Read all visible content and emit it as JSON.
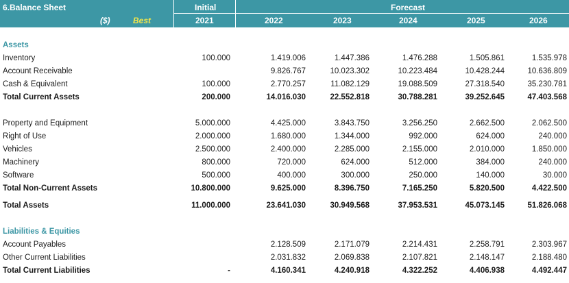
{
  "header": {
    "title": "6.Balance Sheet",
    "unit": "($)",
    "scenario": "Best",
    "initial_label": "Initial",
    "forecast_label": "Forecast",
    "years": [
      "2021",
      "2022",
      "2023",
      "2024",
      "2025",
      "2026"
    ]
  },
  "colors": {
    "header_bg": "#3d97a5",
    "scenario_text": "#f3e64a",
    "section_text": "#3d97a5"
  },
  "sections": {
    "assets": "Assets",
    "liabilities": "Liabilities & Equities"
  },
  "rows": {
    "inventory": {
      "label": "Inventory",
      "values": [
        "100.000",
        "1.419.006",
        "1.447.386",
        "1.476.288",
        "1.505.861",
        "1.535.978"
      ]
    },
    "receivable": {
      "label": "Account Receivable",
      "values": [
        "",
        "9.826.767",
        "10.023.302",
        "10.223.484",
        "10.428.244",
        "10.636.809"
      ]
    },
    "cash": {
      "label": "Cash & Equivalent",
      "values": [
        "100.000",
        "2.770.257",
        "11.082.129",
        "19.088.509",
        "27.318.540",
        "35.230.781"
      ]
    },
    "total_current_assets": {
      "label": "Total Current Assets",
      "values": [
        "200.000",
        "14.016.030",
        "22.552.818",
        "30.788.281",
        "39.252.645",
        "47.403.568"
      ]
    },
    "ppe": {
      "label": "Property and Equipment",
      "values": [
        "5.000.000",
        "4.425.000",
        "3.843.750",
        "3.256.250",
        "2.662.500",
        "2.062.500"
      ]
    },
    "rou": {
      "label": "Right of Use",
      "values": [
        "2.000.000",
        "1.680.000",
        "1.344.000",
        "992.000",
        "624.000",
        "240.000"
      ]
    },
    "vehicles": {
      "label": "Vehicles",
      "values": [
        "2.500.000",
        "2.400.000",
        "2.285.000",
        "2.155.000",
        "2.010.000",
        "1.850.000"
      ]
    },
    "machinery": {
      "label": "Machinery",
      "values": [
        "800.000",
        "720.000",
        "624.000",
        "512.000",
        "384.000",
        "240.000"
      ]
    },
    "software": {
      "label": "Software",
      "values": [
        "500.000",
        "400.000",
        "300.000",
        "250.000",
        "140.000",
        "30.000"
      ]
    },
    "total_noncurrent_assets": {
      "label": "Total Non-Current Assets",
      "values": [
        "10.800.000",
        "9.625.000",
        "8.396.750",
        "7.165.250",
        "5.820.500",
        "4.422.500"
      ]
    },
    "total_assets": {
      "label": "Total Assets",
      "values": [
        "11.000.000",
        "23.641.030",
        "30.949.568",
        "37.953.531",
        "45.073.145",
        "51.826.068"
      ]
    },
    "payables": {
      "label": "Account Payables",
      "values": [
        "",
        "2.128.509",
        "2.171.079",
        "2.214.431",
        "2.258.791",
        "2.303.967"
      ]
    },
    "other_current": {
      "label": "Other Current Liabilities",
      "values": [
        "",
        "2.031.832",
        "2.069.838",
        "2.107.821",
        "2.148.147",
        "2.188.480"
      ]
    },
    "total_current_liabilities": {
      "label": "Total Current Liabilities",
      "values": [
        "-",
        "4.160.341",
        "4.240.918",
        "4.322.252",
        "4.406.938",
        "4.492.447"
      ]
    }
  }
}
